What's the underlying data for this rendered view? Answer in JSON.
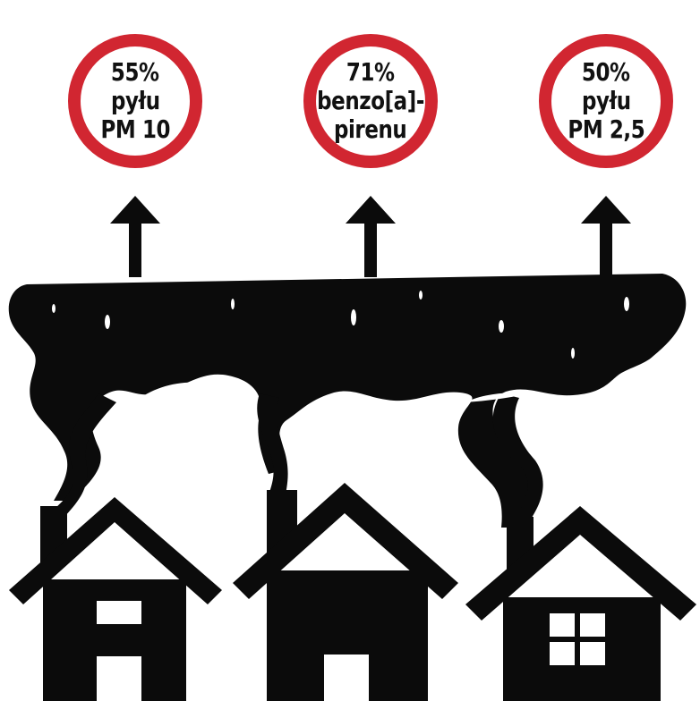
{
  "colors": {
    "ring": "#d12631",
    "smoke": "#0b0b0b",
    "background": "#ffffff"
  },
  "badges": [
    {
      "lines": [
        "55%",
        "pyłu",
        "PM 10"
      ]
    },
    {
      "lines": [
        "71%",
        "benzo[a]-",
        "pirenu"
      ]
    },
    {
      "lines": [
        "50%",
        "pyłu",
        "PM 2,5"
      ]
    }
  ]
}
